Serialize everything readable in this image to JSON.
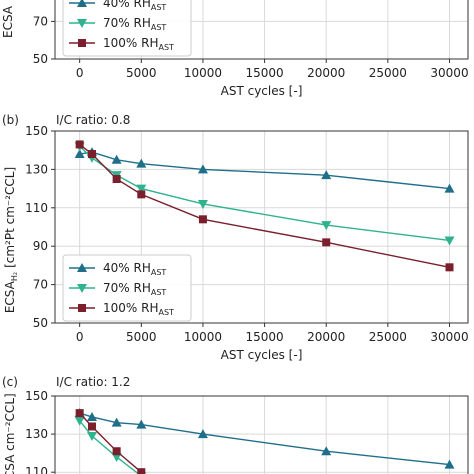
{
  "chart_data": [
    {
      "type": "line",
      "panel_label": "",
      "subtitle": "",
      "xlabel": "AST cycles [-]",
      "ylabel": "ECSA",
      "x_ticks": [
        0,
        5000,
        10000,
        15000,
        20000,
        25000,
        30000
      ],
      "x_tick_labels": [
        "0",
        "5000",
        "10000",
        "15000",
        "20000",
        "25000",
        "30000"
      ],
      "xlim": [
        -2000,
        31500
      ],
      "y_ticks": [
        50,
        70
      ],
      "y_tick_labels": [
        "50",
        "70"
      ],
      "ylim": [
        50,
        92
      ],
      "grid": true,
      "legend_position": "upper-left",
      "series": [
        {
          "name": "40% RH",
          "subscript": "AST",
          "color": "#1f6f8b",
          "marker": "triangle-up",
          "x": [],
          "y": []
        },
        {
          "name": "70% RH",
          "subscript": "AST",
          "color": "#2fb38f",
          "marker": "triangle-down",
          "x": [],
          "y": []
        },
        {
          "name": "100% RH",
          "subscript": "AST",
          "color": "#7a1f2b",
          "marker": "square",
          "x": [],
          "y": []
        }
      ]
    },
    {
      "type": "line",
      "panel_label": "(b)",
      "subtitle": "I/C ratio: 0.8",
      "xlabel": "AST cycles [-]",
      "ylabel": "ECSA",
      "ylabel_sub": "H₂",
      "ylabel_units": "[cm²Pt cm⁻²CCL]",
      "x_ticks": [
        0,
        5000,
        10000,
        15000,
        20000,
        25000,
        30000
      ],
      "x_tick_labels": [
        "0",
        "5000",
        "10000",
        "15000",
        "20000",
        "25000",
        "30000"
      ],
      "xlim": [
        -2000,
        31500
      ],
      "y_ticks": [
        50,
        70,
        90,
        110,
        130,
        150
      ],
      "y_tick_labels": [
        "50",
        "70",
        "90",
        "110",
        "130",
        "150"
      ],
      "ylim": [
        50,
        150
      ],
      "grid": true,
      "legend_position": "lower-left",
      "series": [
        {
          "name": "40% RH",
          "subscript": "AST",
          "color": "#1f6f8b",
          "marker": "triangle-up",
          "x": [
            0,
            1000,
            3000,
            5000,
            10000,
            20000,
            30000
          ],
          "y": [
            138,
            139,
            135,
            133,
            130,
            127,
            120
          ]
        },
        {
          "name": "70% RH",
          "subscript": "AST",
          "color": "#2fb38f",
          "marker": "triangle-down",
          "x": [
            0,
            1000,
            3000,
            5000,
            10000,
            20000,
            30000
          ],
          "y": [
            142,
            136,
            127,
            120,
            112,
            101,
            93
          ]
        },
        {
          "name": "100% RH",
          "subscript": "AST",
          "color": "#7a1f2b",
          "marker": "square",
          "x": [
            0,
            1000,
            3000,
            5000,
            10000,
            20000,
            30000
          ],
          "y": [
            143,
            138,
            125,
            117,
            104,
            92,
            79
          ]
        }
      ]
    },
    {
      "type": "line",
      "panel_label": "(c)",
      "subtitle": "I/C ratio: 1.2",
      "ylabel": "ECSA",
      "ylabel_units": "cm⁻²CCL]",
      "x_ticks": [
        0,
        5000,
        10000,
        15000,
        20000,
        25000,
        30000
      ],
      "xlim": [
        -2000,
        31500
      ],
      "y_ticks": [
        110,
        130,
        150
      ],
      "y_tick_labels": [
        "110",
        "130",
        "150"
      ],
      "ylim": [
        108,
        150
      ],
      "grid": true,
      "series": [
        {
          "name": "40% RH",
          "subscript": "AST",
          "color": "#1f6f8b",
          "marker": "triangle-up",
          "x": [
            0,
            1000,
            3000,
            5000,
            10000,
            20000,
            30000
          ],
          "y": [
            141,
            139,
            136,
            135,
            130,
            121,
            114
          ]
        },
        {
          "name": "70% RH",
          "subscript": "AST",
          "color": "#2fb38f",
          "marker": "triangle-down",
          "x": [
            0,
            1000,
            3000,
            5000
          ],
          "y": [
            137,
            129,
            118,
            108
          ]
        },
        {
          "name": "100% RH",
          "subscript": "AST",
          "color": "#7a1f2b",
          "marker": "square",
          "x": [
            0,
            1000,
            3000,
            5000
          ],
          "y": [
            141,
            134,
            121,
            110
          ]
        }
      ]
    }
  ]
}
